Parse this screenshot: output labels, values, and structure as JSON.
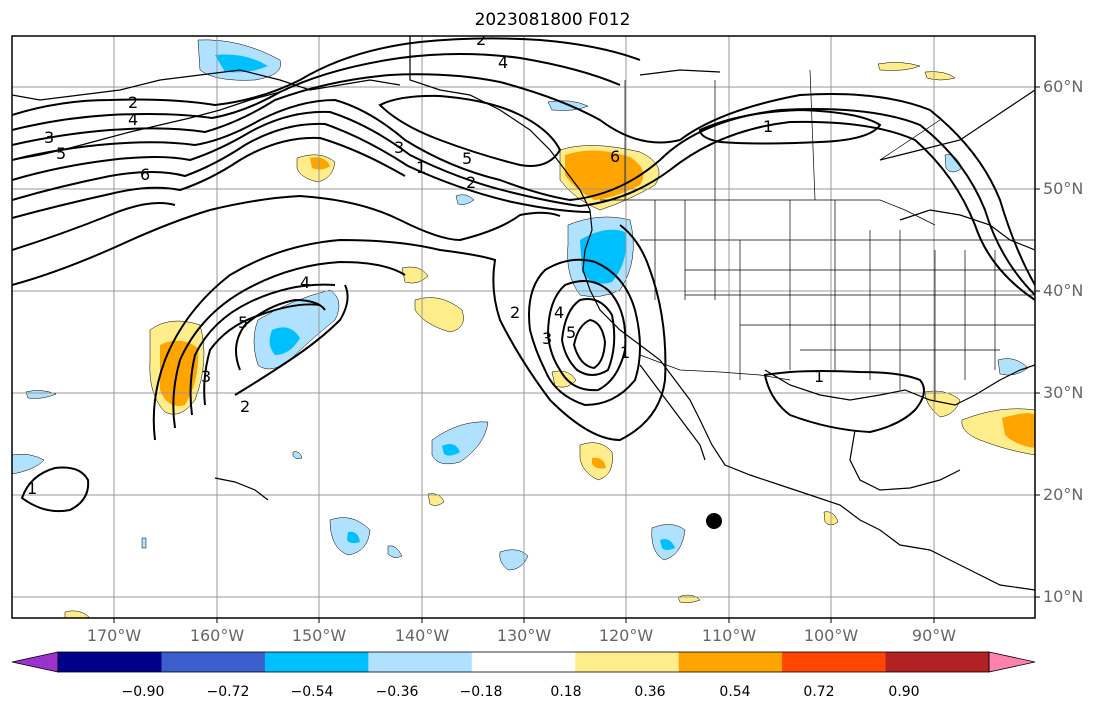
{
  "title": "2023081800 F012",
  "lat_labels": [
    "60°N",
    "50°N",
    "40°N",
    "30°N",
    "20°N",
    "10°N"
  ],
  "lon_labels": [
    "170°W",
    "160°W",
    "150°W",
    "140°W",
    "130°W",
    "120°W",
    "110°W",
    "100°W",
    "90°W"
  ],
  "colorbar": {
    "ticks": [
      "−0.90",
      "−0.72",
      "−0.54",
      "−0.36",
      "−0.18",
      "0.18",
      "0.36",
      "0.54",
      "0.72",
      "0.90"
    ],
    "colors": [
      "#9a32cd",
      "#00008b",
      "#3a5fcd",
      "#00bfff",
      "#b0e2ff",
      "#ffffff",
      "#ffec8b",
      "#ffa500",
      "#ff4500",
      "#b22222",
      "#ff82ab"
    ]
  },
  "contour_labels": [
    "2",
    "4",
    "2",
    "3",
    "4",
    "5",
    "6",
    "3",
    "1",
    "2",
    "5",
    "6",
    "1",
    "4",
    "5",
    "3",
    "2",
    "2",
    "4",
    "3",
    "5",
    "1",
    "1",
    "1"
  ],
  "colors": {
    "shade_light_blue": "#b0e2ff",
    "shade_blue": "#00bfff",
    "shade_yellow": "#ffec8b",
    "shade_orange": "#ffa500",
    "contour": "#000000",
    "grid": "#999999"
  }
}
